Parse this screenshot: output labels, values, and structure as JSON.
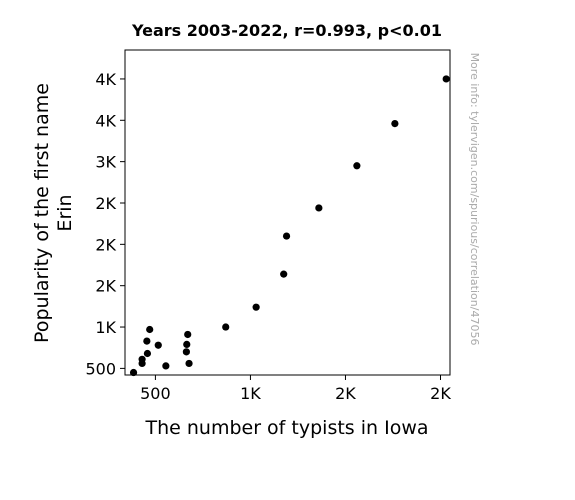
{
  "chart_data": {
    "type": "scatter",
    "title": "Years 2003-2022, r=0.993, p<0.01",
    "xlabel": "The number of typists in Iowa",
    "ylabel": [
      "Popularity of the first name",
      "Erin"
    ],
    "xlim": [
      340,
      2050
    ],
    "ylim": [
      420,
      4350
    ],
    "x_ticks": [
      {
        "value": 500,
        "label": "500"
      },
      {
        "value": 1000,
        "label": "1K"
      },
      {
        "value": 1500,
        "label": "2K"
      },
      {
        "value": 2000,
        "label": "2K"
      }
    ],
    "y_ticks": [
      {
        "value": 500,
        "label": "500"
      },
      {
        "value": 1000,
        "label": "1K"
      },
      {
        "value": 1500,
        "label": "2K"
      },
      {
        "value": 2000,
        "label": "2K"
      },
      {
        "value": 2500,
        "label": "2K"
      },
      {
        "value": 3000,
        "label": "3K"
      },
      {
        "value": 3500,
        "label": "4K"
      },
      {
        "value": 4000,
        "label": "4K"
      }
    ],
    "points": [
      {
        "x": 2030,
        "y": 4000
      },
      {
        "x": 1760,
        "y": 3460
      },
      {
        "x": 1560,
        "y": 2950
      },
      {
        "x": 1360,
        "y": 2440
      },
      {
        "x": 1190,
        "y": 2100
      },
      {
        "x": 1175,
        "y": 1640
      },
      {
        "x": 1030,
        "y": 1240
      },
      {
        "x": 870,
        "y": 1000
      },
      {
        "x": 670,
        "y": 910
      },
      {
        "x": 665,
        "y": 790
      },
      {
        "x": 663,
        "y": 700
      },
      {
        "x": 677,
        "y": 560
      },
      {
        "x": 555,
        "y": 530
      },
      {
        "x": 470,
        "y": 970
      },
      {
        "x": 455,
        "y": 830
      },
      {
        "x": 515,
        "y": 780
      },
      {
        "x": 458,
        "y": 680
      },
      {
        "x": 430,
        "y": 610
      },
      {
        "x": 430,
        "y": 560
      },
      {
        "x": 385,
        "y": 450
      }
    ],
    "grid": false,
    "watermark": "More info: tylervigen.com/spurious/correlation/47056"
  }
}
